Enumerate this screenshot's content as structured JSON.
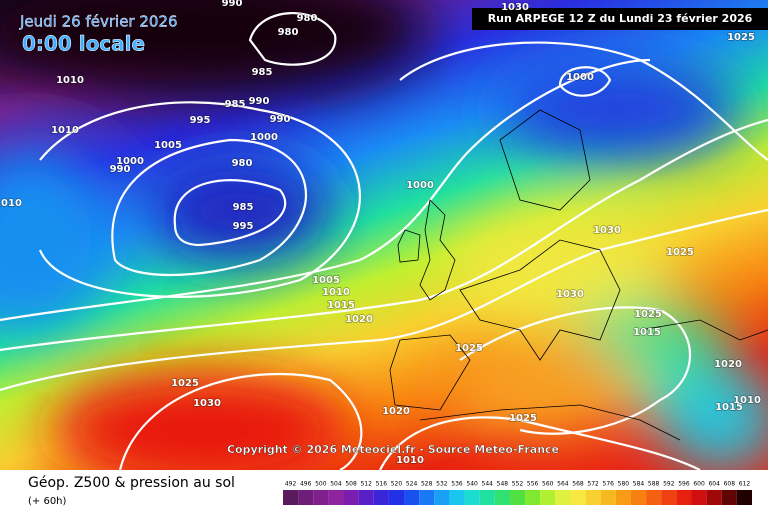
{
  "header": {
    "date": "Jeudi 26 février 2026",
    "time": "0:00 locale",
    "run": "Run ARPEGE 12 Z du Lundi 23 février 2026"
  },
  "copyright": "Copyright © 2026 Meteociel.fr - Source Meteo-France",
  "footer": {
    "title": "Géop. Z500 & pression au sol",
    "lead": "(+ 60h)"
  },
  "isobar_labels": [
    990,
    980,
    980,
    1010,
    1010,
    985,
    995,
    985,
    990,
    990,
    1000,
    1005,
    1000,
    990,
    980,
    985,
    995,
    1000,
    1000,
    1030,
    1025,
    1030,
    1025,
    1030,
    1025,
    1005,
    1010,
    1015,
    1020,
    1025,
    1025,
    1030,
    1020,
    1025,
    1020,
    1015,
    1010,
    1015,
    1010,
    1010
  ],
  "colorbar": {
    "values": [
      492,
      496,
      500,
      504,
      508,
      512,
      516,
      520,
      524,
      528,
      532,
      536,
      540,
      544,
      548,
      552,
      556,
      560,
      564,
      568,
      572,
      576,
      580,
      584,
      588,
      592,
      596,
      600,
      604,
      608,
      612
    ],
    "colors": [
      "#5a1a5e",
      "#6e1e78",
      "#80208c",
      "#8e24a0",
      "#7a1eb0",
      "#5a20c8",
      "#3a26d8",
      "#2230e6",
      "#1a50f0",
      "#1a78f6",
      "#18a0f6",
      "#18c6f0",
      "#1adcd0",
      "#20e0a0",
      "#30e070",
      "#50e040",
      "#80e830",
      "#b0f030",
      "#e0f040",
      "#f8e840",
      "#f8d030",
      "#f8b820",
      "#f89c18",
      "#f88010",
      "#f46010",
      "#f04010",
      "#e82010",
      "#d01010",
      "#a00808",
      "#600404",
      "#200000"
    ]
  }
}
